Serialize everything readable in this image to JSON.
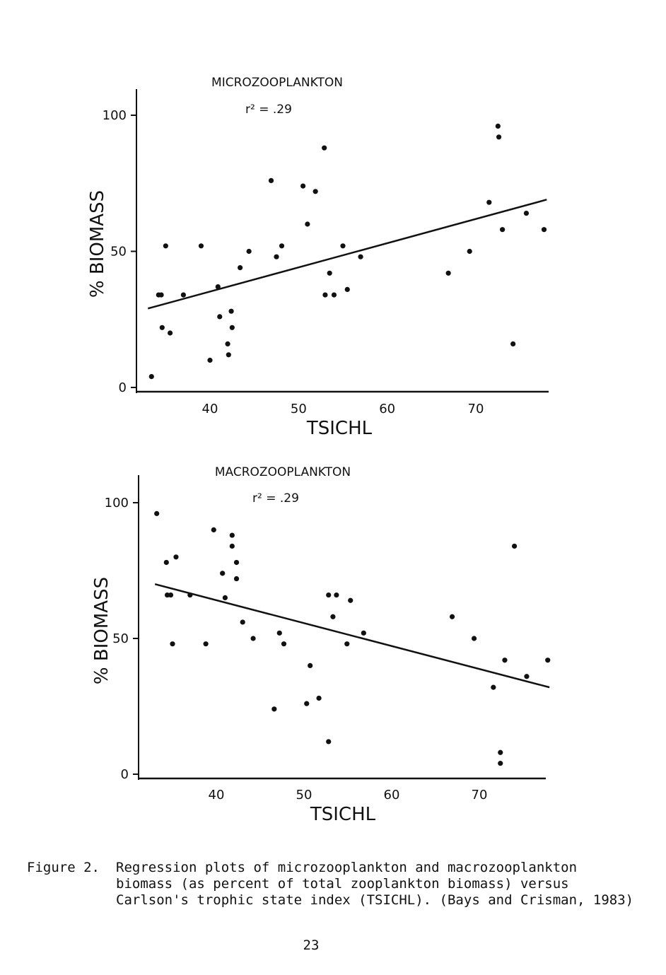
{
  "chart_data": [
    {
      "type": "scatter",
      "title": "MICROZOOPLANKTON",
      "annotation": "r² = .29",
      "xlabel": "TSICHL",
      "ylabel": "% BIOMASS",
      "x_ticks": [
        40,
        50,
        60,
        70
      ],
      "y_ticks": [
        0,
        50,
        100
      ],
      "xlim": [
        32,
        78
      ],
      "ylim": [
        0,
        110
      ],
      "grid": false,
      "points": [
        {
          "x": 33.4,
          "y": 4
        },
        {
          "x": 34.2,
          "y": 34
        },
        {
          "x": 34.5,
          "y": 34
        },
        {
          "x": 34.6,
          "y": 22
        },
        {
          "x": 35.0,
          "y": 52
        },
        {
          "x": 35.5,
          "y": 20
        },
        {
          "x": 37.0,
          "y": 34
        },
        {
          "x": 39.0,
          "y": 52
        },
        {
          "x": 40.0,
          "y": 10
        },
        {
          "x": 40.9,
          "y": 37
        },
        {
          "x": 41.1,
          "y": 26
        },
        {
          "x": 42.0,
          "y": 16
        },
        {
          "x": 42.1,
          "y": 12
        },
        {
          "x": 42.4,
          "y": 28
        },
        {
          "x": 42.5,
          "y": 22
        },
        {
          "x": 43.4,
          "y": 44
        },
        {
          "x": 44.4,
          "y": 50
        },
        {
          "x": 46.9,
          "y": 76
        },
        {
          "x": 47.5,
          "y": 48
        },
        {
          "x": 48.1,
          "y": 52
        },
        {
          "x": 50.5,
          "y": 74
        },
        {
          "x": 51.0,
          "y": 60
        },
        {
          "x": 51.9,
          "y": 72
        },
        {
          "x": 52.9,
          "y": 88
        },
        {
          "x": 53.0,
          "y": 34
        },
        {
          "x": 53.5,
          "y": 42
        },
        {
          "x": 54.0,
          "y": 34
        },
        {
          "x": 55.0,
          "y": 52
        },
        {
          "x": 55.5,
          "y": 36
        },
        {
          "x": 57.0,
          "y": 48
        },
        {
          "x": 66.9,
          "y": 42
        },
        {
          "x": 69.3,
          "y": 50
        },
        {
          "x": 71.5,
          "y": 68
        },
        {
          "x": 72.5,
          "y": 96
        },
        {
          "x": 72.6,
          "y": 92
        },
        {
          "x": 73.0,
          "y": 58
        },
        {
          "x": 74.2,
          "y": 16
        },
        {
          "x": 75.7,
          "y": 64
        },
        {
          "x": 77.7,
          "y": 58
        }
      ],
      "regression": {
        "x": [
          33,
          78
        ],
        "y": [
          29,
          69
        ]
      }
    },
    {
      "type": "scatter",
      "title": "MACROZOOPLANKTON",
      "annotation": "r² = .29",
      "xlabel": "TSICHL",
      "ylabel": "% BIOMASS",
      "x_ticks": [
        40,
        50,
        60,
        70
      ],
      "y_ticks": [
        0,
        50,
        100
      ],
      "xlim": [
        32,
        78
      ],
      "ylim": [
        0,
        110
      ],
      "grid": false,
      "points": [
        {
          "x": 33.2,
          "y": 96
        },
        {
          "x": 34.3,
          "y": 78
        },
        {
          "x": 34.4,
          "y": 66
        },
        {
          "x": 34.8,
          "y": 66
        },
        {
          "x": 35.0,
          "y": 48
        },
        {
          "x": 35.4,
          "y": 80
        },
        {
          "x": 37.0,
          "y": 66
        },
        {
          "x": 38.8,
          "y": 48
        },
        {
          "x": 39.7,
          "y": 90
        },
        {
          "x": 40.7,
          "y": 74
        },
        {
          "x": 41.0,
          "y": 65
        },
        {
          "x": 41.8,
          "y": 88
        },
        {
          "x": 41.8,
          "y": 84
        },
        {
          "x": 42.3,
          "y": 78
        },
        {
          "x": 42.3,
          "y": 72
        },
        {
          "x": 43.0,
          "y": 56
        },
        {
          "x": 44.2,
          "y": 50
        },
        {
          "x": 46.6,
          "y": 24
        },
        {
          "x": 47.2,
          "y": 52
        },
        {
          "x": 47.7,
          "y": 48
        },
        {
          "x": 50.3,
          "y": 26
        },
        {
          "x": 50.7,
          "y": 40
        },
        {
          "x": 51.7,
          "y": 28
        },
        {
          "x": 52.8,
          "y": 12
        },
        {
          "x": 52.8,
          "y": 66
        },
        {
          "x": 53.3,
          "y": 58
        },
        {
          "x": 53.7,
          "y": 66
        },
        {
          "x": 54.9,
          "y": 48
        },
        {
          "x": 55.3,
          "y": 64
        },
        {
          "x": 56.8,
          "y": 52
        },
        {
          "x": 66.9,
          "y": 58
        },
        {
          "x": 69.4,
          "y": 50
        },
        {
          "x": 71.6,
          "y": 32
        },
        {
          "x": 72.4,
          "y": 8
        },
        {
          "x": 72.4,
          "y": 4
        },
        {
          "x": 72.9,
          "y": 42
        },
        {
          "x": 74.0,
          "y": 84
        },
        {
          "x": 75.4,
          "y": 36
        },
        {
          "x": 77.8,
          "y": 42
        }
      ],
      "regression": {
        "x": [
          33,
          78
        ],
        "y": [
          70,
          32
        ]
      }
    }
  ],
  "caption": {
    "label": "Figure 2.",
    "lines": [
      "Regression plots of microzooplankton and macrozooplankton",
      "biomass (as percent of total zooplankton biomass) versus",
      "Carlson's trophic state index (TSICHL). (Bays and Crisman, 1983)"
    ]
  },
  "page_number": "23"
}
